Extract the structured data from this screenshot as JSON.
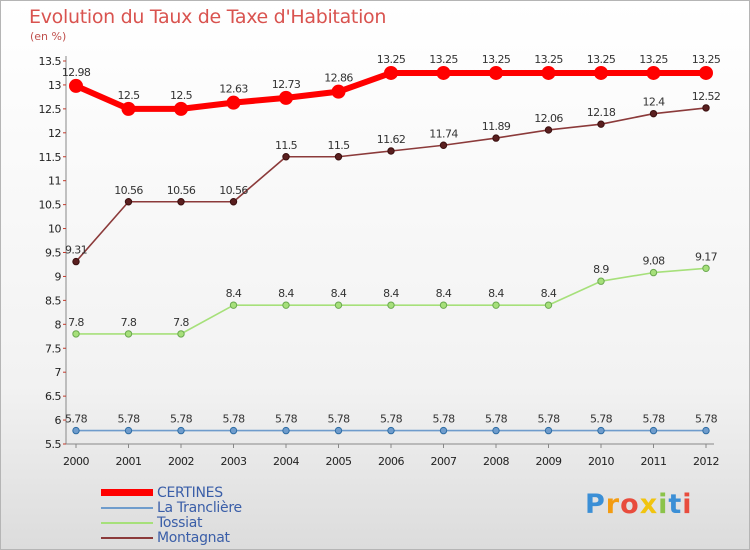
{
  "title": "Evolution du Taux de Taxe d'Habitation",
  "subtitle": "(en %)",
  "logo": "Proxiti",
  "chart_data": {
    "type": "line",
    "x": [
      "2000",
      "2001",
      "2002",
      "2003",
      "2004",
      "2005",
      "2006",
      "2007",
      "2008",
      "2009",
      "2010",
      "2011",
      "2012"
    ],
    "ylim": [
      5.5,
      13.5
    ],
    "yticks": [
      "5.5",
      "6",
      "6.5",
      "7",
      "7.5",
      "8",
      "8.5",
      "9",
      "9.5",
      "10",
      "10.5",
      "11",
      "11.5",
      "12",
      "12.5",
      "13",
      "13.5"
    ],
    "grid": false,
    "legend_position": "bottom-left",
    "series": [
      {
        "name": "CERTINES",
        "color": "#ff0000",
        "values": [
          12.98,
          12.5,
          12.5,
          12.63,
          12.73,
          12.86,
          13.25,
          13.25,
          13.25,
          13.25,
          13.25,
          13.25,
          13.25
        ],
        "labels": [
          "12.98",
          "12.5",
          "12.5",
          "12.63",
          "12.73",
          "12.86",
          "13.25",
          "13.25",
          "13.25",
          "13.25",
          "13.25",
          "13.25",
          "13.25"
        ]
      },
      {
        "name": "La Tranclière",
        "color": "#6f9ccc",
        "values": [
          5.78,
          5.78,
          5.78,
          5.78,
          5.78,
          5.78,
          5.78,
          5.78,
          5.78,
          5.78,
          5.78,
          5.78,
          5.78
        ],
        "labels": [
          "5.78",
          "5.78",
          "5.78",
          "5.78",
          "5.78",
          "5.78",
          "5.78",
          "5.78",
          "5.78",
          "5.78",
          "5.78",
          "5.78",
          "5.78"
        ]
      },
      {
        "name": "Tossiat",
        "color": "#a6e07a",
        "values": [
          7.8,
          7.8,
          7.8,
          8.4,
          8.4,
          8.4,
          8.4,
          8.4,
          8.4,
          8.4,
          8.9,
          9.08,
          9.17
        ],
        "labels": [
          "7.8",
          "7.8",
          "7.8",
          "8.4",
          "8.4",
          "8.4",
          "8.4",
          "8.4",
          "8.4",
          "8.4",
          "8.9",
          "9.08",
          "9.17"
        ]
      },
      {
        "name": "Montagnat",
        "color": "#8b3a3a",
        "values": [
          9.31,
          10.56,
          10.56,
          10.56,
          11.5,
          11.5,
          11.62,
          11.74,
          11.89,
          12.06,
          12.18,
          12.4,
          12.52
        ],
        "labels": [
          "9.31",
          "10.56",
          "10.56",
          "10.56",
          "11.5",
          "11.5",
          "11.62",
          "11.74",
          "11.89",
          "12.06",
          "12.18",
          "12.4",
          "12.52"
        ]
      }
    ]
  }
}
